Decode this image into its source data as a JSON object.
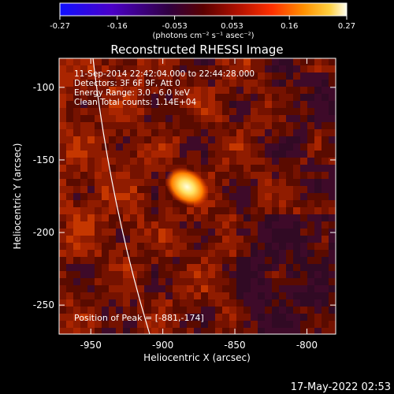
{
  "colorbar": {
    "ticks": [
      "-0.27",
      "-0.16",
      "-0.053",
      "0.053",
      "0.16",
      "0.27"
    ],
    "units": "(photons cm⁻² s⁻¹ asec⁻²)",
    "colors": [
      "#1010ff",
      "#4a00c8",
      "#300040",
      "#5a0000",
      "#b01000",
      "#ff3000",
      "#ff9000",
      "#ffd040",
      "#fffff0"
    ]
  },
  "plot": {
    "title": "Reconstructed RHESSI Image",
    "xlabel": "Heliocentric X (arcsec)",
    "ylabel": "Heliocentric Y (arcsec)",
    "xticks": [
      "-950",
      "-900",
      "-850",
      "-800"
    ],
    "yticks": [
      "-100",
      "-150",
      "-200",
      "-250"
    ],
    "info_lines": [
      "11-Sep-2014 22:42:04.000 to 22:44:28.000",
      "Detectors: 3F 6F 9F, Att 0",
      "Energy Range: 3.0 - 6.0 keV",
      "Clean    Total counts: 1.14E+04"
    ],
    "peak_label": "Position of Peak = [-881,-174]",
    "x_range": [
      -972,
      -780
    ],
    "y_range": [
      -270,
      -80
    ],
    "peak": [
      -881,
      -174
    ],
    "limb_color": "#ffffff"
  },
  "footer": {
    "timestamp": "17-May-2022 02:53"
  }
}
